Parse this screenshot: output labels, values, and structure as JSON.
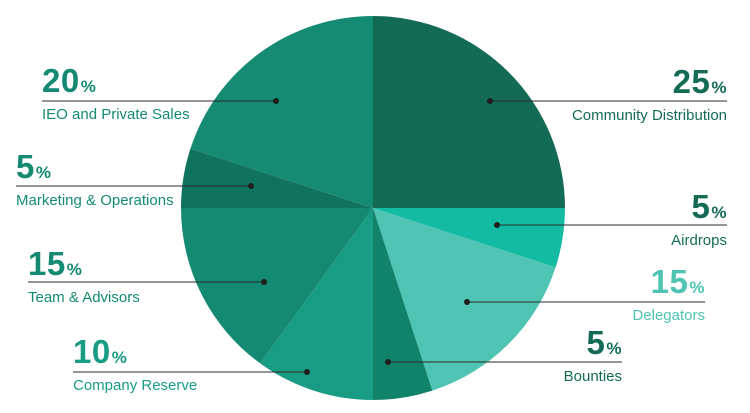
{
  "chart_data": {
    "type": "pie",
    "unit": "%",
    "slices": [
      {
        "label": "Community Distribution",
        "value": 25,
        "color": "#136b56",
        "text_color": "#136b56"
      },
      {
        "label": "Airdrops",
        "value": 5,
        "color": "#13bba3",
        "text_color": "#136b56"
      },
      {
        "label": "Delegators",
        "value": 15,
        "color": "#4fc4b3",
        "text_color": "#4fc4b3"
      },
      {
        "label": "Bounties",
        "value": 5,
        "color": "#12836b",
        "text_color": "#136b56"
      },
      {
        "label": "Company Reserve",
        "value": 10,
        "color": "#199c84",
        "text_color": "#199c84"
      },
      {
        "label": "Team & Advisors",
        "value": 15,
        "color": "#148a73",
        "text_color": "#148a73"
      },
      {
        "label": "Marketing & Operations",
        "value": 5,
        "color": "#10735d",
        "text_color": "#148a73"
      },
      {
        "label": "IEO and Private Sales",
        "value": 20,
        "color": "#168b74",
        "text_color": "#148a73"
      }
    ]
  }
}
